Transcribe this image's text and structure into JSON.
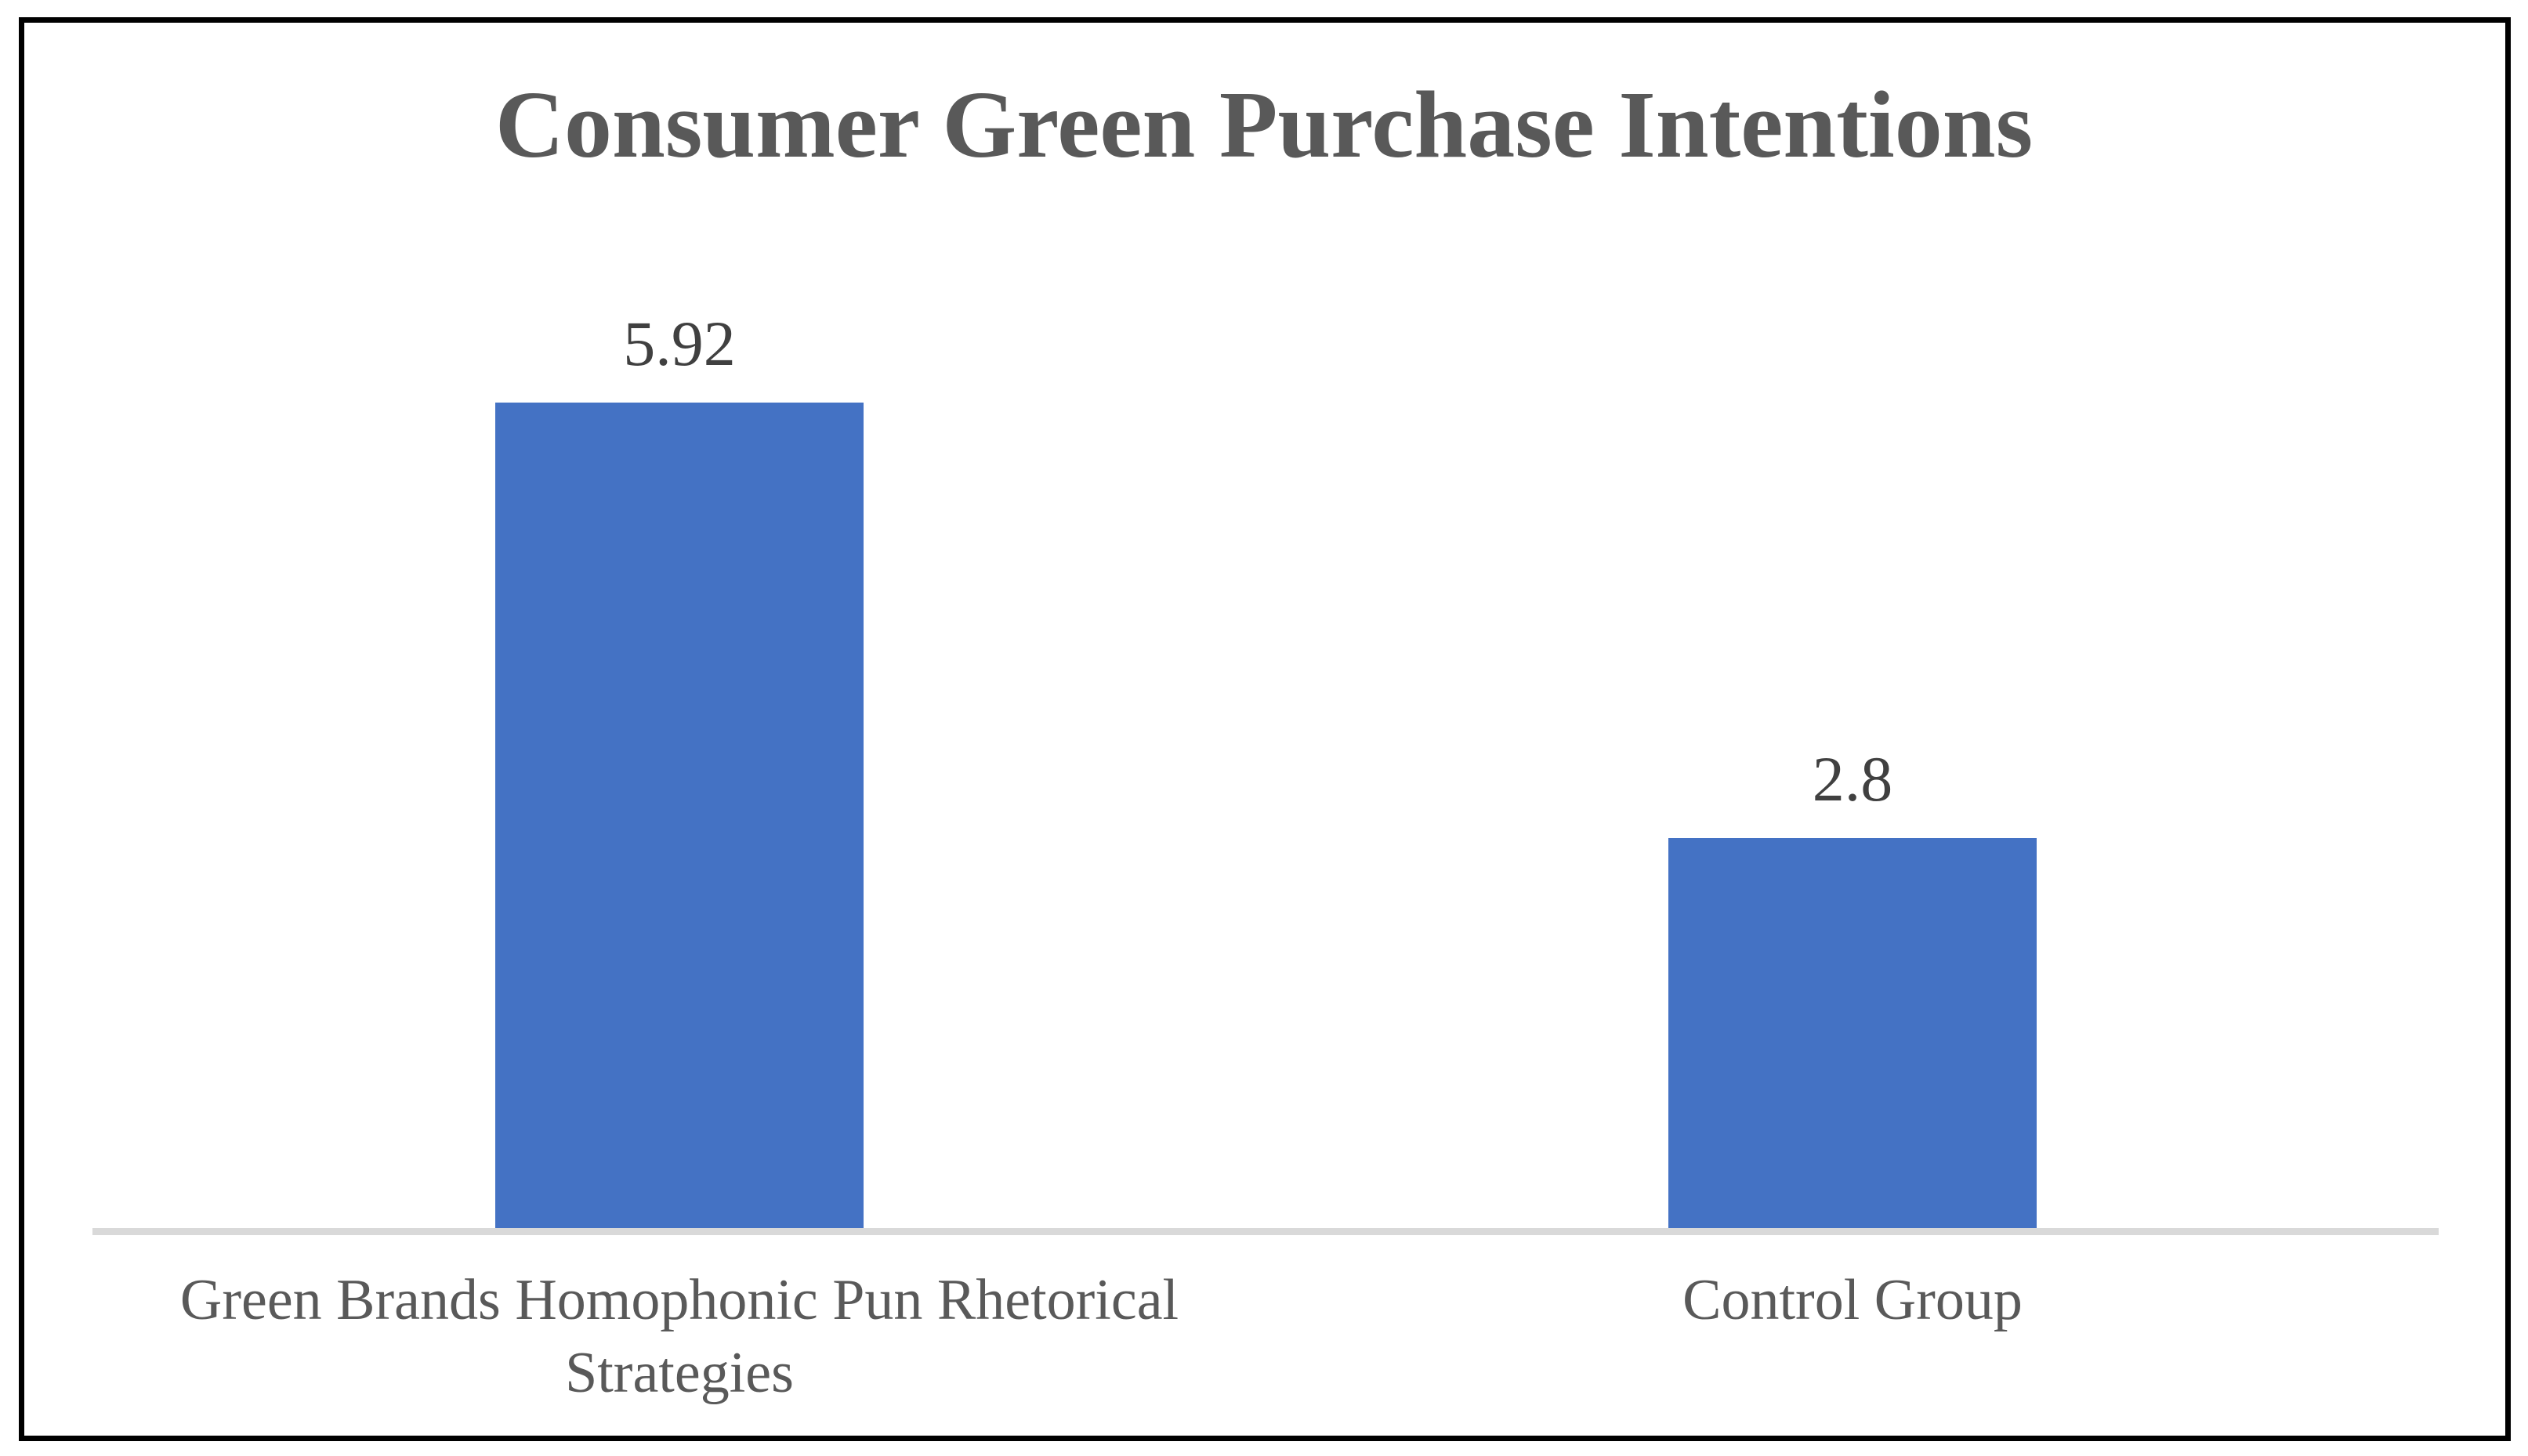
{
  "chart_data": {
    "type": "bar",
    "title": "Consumer Green Purchase Intentions",
    "categories": [
      "Green Brands Homophonic Pun Rhetorical Strategies",
      "Control Group"
    ],
    "values": [
      5.92,
      2.8
    ],
    "data_labels": [
      "5.92",
      "2.8"
    ],
    "xlabel": "",
    "ylabel": "",
    "ylim": [
      0,
      7
    ],
    "grid": false,
    "legend": false,
    "colors": {
      "bar": "#4472C4",
      "axis_line": "#D9D9D9",
      "title_text": "#595959",
      "category_text": "#595959",
      "value_text": "#404040",
      "border": "#000000",
      "background": "#FFFFFF"
    }
  }
}
